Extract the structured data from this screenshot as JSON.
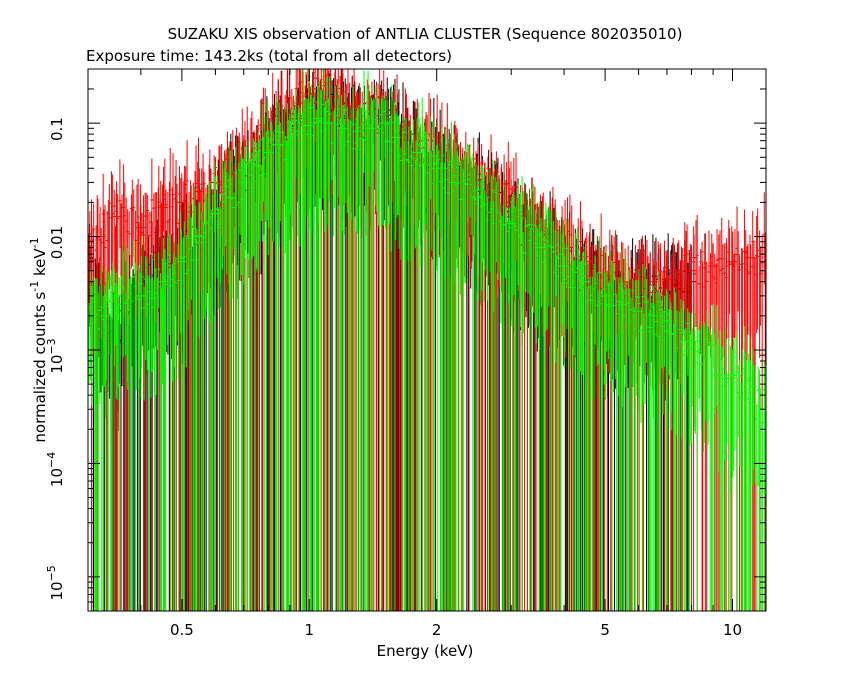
{
  "chart_data": {
    "type": "scatter",
    "title": "SUZAKU XIS observation of ANTLIA CLUSTER (Sequence 802035010)",
    "subtitle": "Exposure time: 143.2ks (total from all detectors)",
    "xlabel": "Energy (keV)",
    "ylabel_parts": [
      "normalized counts s",
      "-1",
      " keV",
      "-1"
    ],
    "xscale": "log",
    "yscale": "log",
    "xlim": [
      0.3,
      12
    ],
    "ylim": [
      5e-06,
      0.3
    ],
    "grid": false,
    "x_ticks": [
      {
        "value": 0.5,
        "label": "0.5"
      },
      {
        "value": 1,
        "label": "1"
      },
      {
        "value": 2,
        "label": "2"
      },
      {
        "value": 5,
        "label": "5"
      },
      {
        "value": 10,
        "label": "10"
      }
    ],
    "y_ticks": [
      {
        "value": 0.1,
        "label": "0.1"
      },
      {
        "value": 0.01,
        "label": "0.01"
      },
      {
        "value": 0.001,
        "base": "10",
        "exp": "−3"
      },
      {
        "value": 0.0001,
        "base": "10",
        "exp": "−4"
      },
      {
        "value": 1e-05,
        "base": "10",
        "exp": "−5"
      }
    ],
    "series": [
      {
        "color": "#000000",
        "points": [
          [
            0.3,
            0.0065
          ],
          [
            0.34,
            0.0012
          ],
          [
            0.4,
            0.004
          ],
          [
            0.45,
            0.006
          ],
          [
            0.5,
            0.0075
          ],
          [
            0.55,
            0.01
          ],
          [
            0.6,
            0.016
          ],
          [
            0.65,
            0.025
          ],
          [
            0.7,
            0.03
          ],
          [
            0.75,
            0.045
          ],
          [
            0.8,
            0.065
          ],
          [
            0.85,
            0.08
          ],
          [
            0.9,
            0.095
          ],
          [
            0.95,
            0.11
          ],
          [
            1.0,
            0.14
          ],
          [
            1.05,
            0.15
          ],
          [
            1.1,
            0.13
          ],
          [
            1.2,
            0.11
          ],
          [
            1.3,
            0.1
          ],
          [
            1.4,
            0.1
          ],
          [
            1.5,
            0.11
          ],
          [
            1.6,
            0.08
          ],
          [
            1.8,
            0.06
          ],
          [
            2.0,
            0.045
          ],
          [
            2.2,
            0.035
          ],
          [
            2.5,
            0.025
          ],
          [
            3.0,
            0.015
          ],
          [
            3.5,
            0.009
          ],
          [
            4.0,
            0.006
          ],
          [
            4.5,
            0.0045
          ],
          [
            5.0,
            0.0035
          ],
          [
            5.5,
            0.003
          ],
          [
            6.0,
            0.003
          ],
          [
            6.5,
            0.0032
          ],
          [
            7.0,
            0.0032
          ],
          [
            8.0,
            0.004
          ]
        ]
      },
      {
        "color": "#ff0000",
        "points": [
          [
            0.3,
            0.008
          ],
          [
            0.32,
            0.01
          ],
          [
            0.35,
            0.015
          ],
          [
            0.4,
            0.012
          ],
          [
            0.45,
            0.018
          ],
          [
            0.5,
            0.02
          ],
          [
            0.55,
            0.025
          ],
          [
            0.6,
            0.03
          ],
          [
            0.65,
            0.035
          ],
          [
            0.7,
            0.045
          ],
          [
            0.75,
            0.06
          ],
          [
            0.8,
            0.08
          ],
          [
            0.85,
            0.1
          ],
          [
            0.9,
            0.12
          ],
          [
            0.95,
            0.15
          ],
          [
            1.0,
            0.18
          ],
          [
            1.05,
            0.2
          ],
          [
            1.1,
            0.17
          ],
          [
            1.2,
            0.14
          ],
          [
            1.3,
            0.12
          ],
          [
            1.4,
            0.11
          ],
          [
            1.5,
            0.12
          ],
          [
            1.6,
            0.09
          ],
          [
            1.8,
            0.07
          ],
          [
            2.0,
            0.055
          ],
          [
            2.2,
            0.045
          ],
          [
            2.5,
            0.032
          ],
          [
            3.0,
            0.02
          ],
          [
            3.5,
            0.012
          ],
          [
            4.0,
            0.008
          ],
          [
            4.5,
            0.006
          ],
          [
            5.0,
            0.0045
          ],
          [
            5.5,
            0.004
          ],
          [
            6.0,
            0.0038
          ],
          [
            6.5,
            0.004
          ],
          [
            7.0,
            0.0042
          ],
          [
            8.0,
            0.005
          ],
          [
            9.0,
            0.0055
          ],
          [
            10.0,
            0.006
          ],
          [
            11.0,
            0.0065
          ],
          [
            12.0,
            0.007
          ]
        ]
      },
      {
        "color": "#00ff00",
        "points": [
          [
            0.3,
            0.002
          ],
          [
            0.33,
            0.002
          ],
          [
            0.35,
            0.003
          ],
          [
            0.4,
            0.003
          ],
          [
            0.45,
            0.004
          ],
          [
            0.5,
            0.006
          ],
          [
            0.55,
            0.01
          ],
          [
            0.6,
            0.016
          ],
          [
            0.65,
            0.022
          ],
          [
            0.7,
            0.03
          ],
          [
            0.75,
            0.042
          ],
          [
            0.8,
            0.055
          ],
          [
            0.85,
            0.065
          ],
          [
            0.9,
            0.075
          ],
          [
            0.95,
            0.085
          ],
          [
            1.0,
            0.095
          ],
          [
            1.05,
            0.11
          ],
          [
            1.1,
            0.1
          ],
          [
            1.2,
            0.09
          ],
          [
            1.3,
            0.085
          ],
          [
            1.4,
            0.09
          ],
          [
            1.5,
            0.1
          ],
          [
            1.6,
            0.075
          ],
          [
            1.8,
            0.055
          ],
          [
            2.0,
            0.04
          ],
          [
            2.2,
            0.03
          ],
          [
            2.5,
            0.022
          ],
          [
            3.0,
            0.013
          ],
          [
            3.5,
            0.008
          ],
          [
            4.0,
            0.0055
          ],
          [
            4.5,
            0.004
          ],
          [
            5.0,
            0.003
          ],
          [
            5.5,
            0.0025
          ],
          [
            6.0,
            0.0022
          ],
          [
            6.5,
            0.002
          ],
          [
            7.0,
            0.0018
          ],
          [
            8.0,
            0.0012
          ],
          [
            10.0,
            0.0006
          ],
          [
            12.0,
            0.0003
          ]
        ]
      }
    ]
  }
}
